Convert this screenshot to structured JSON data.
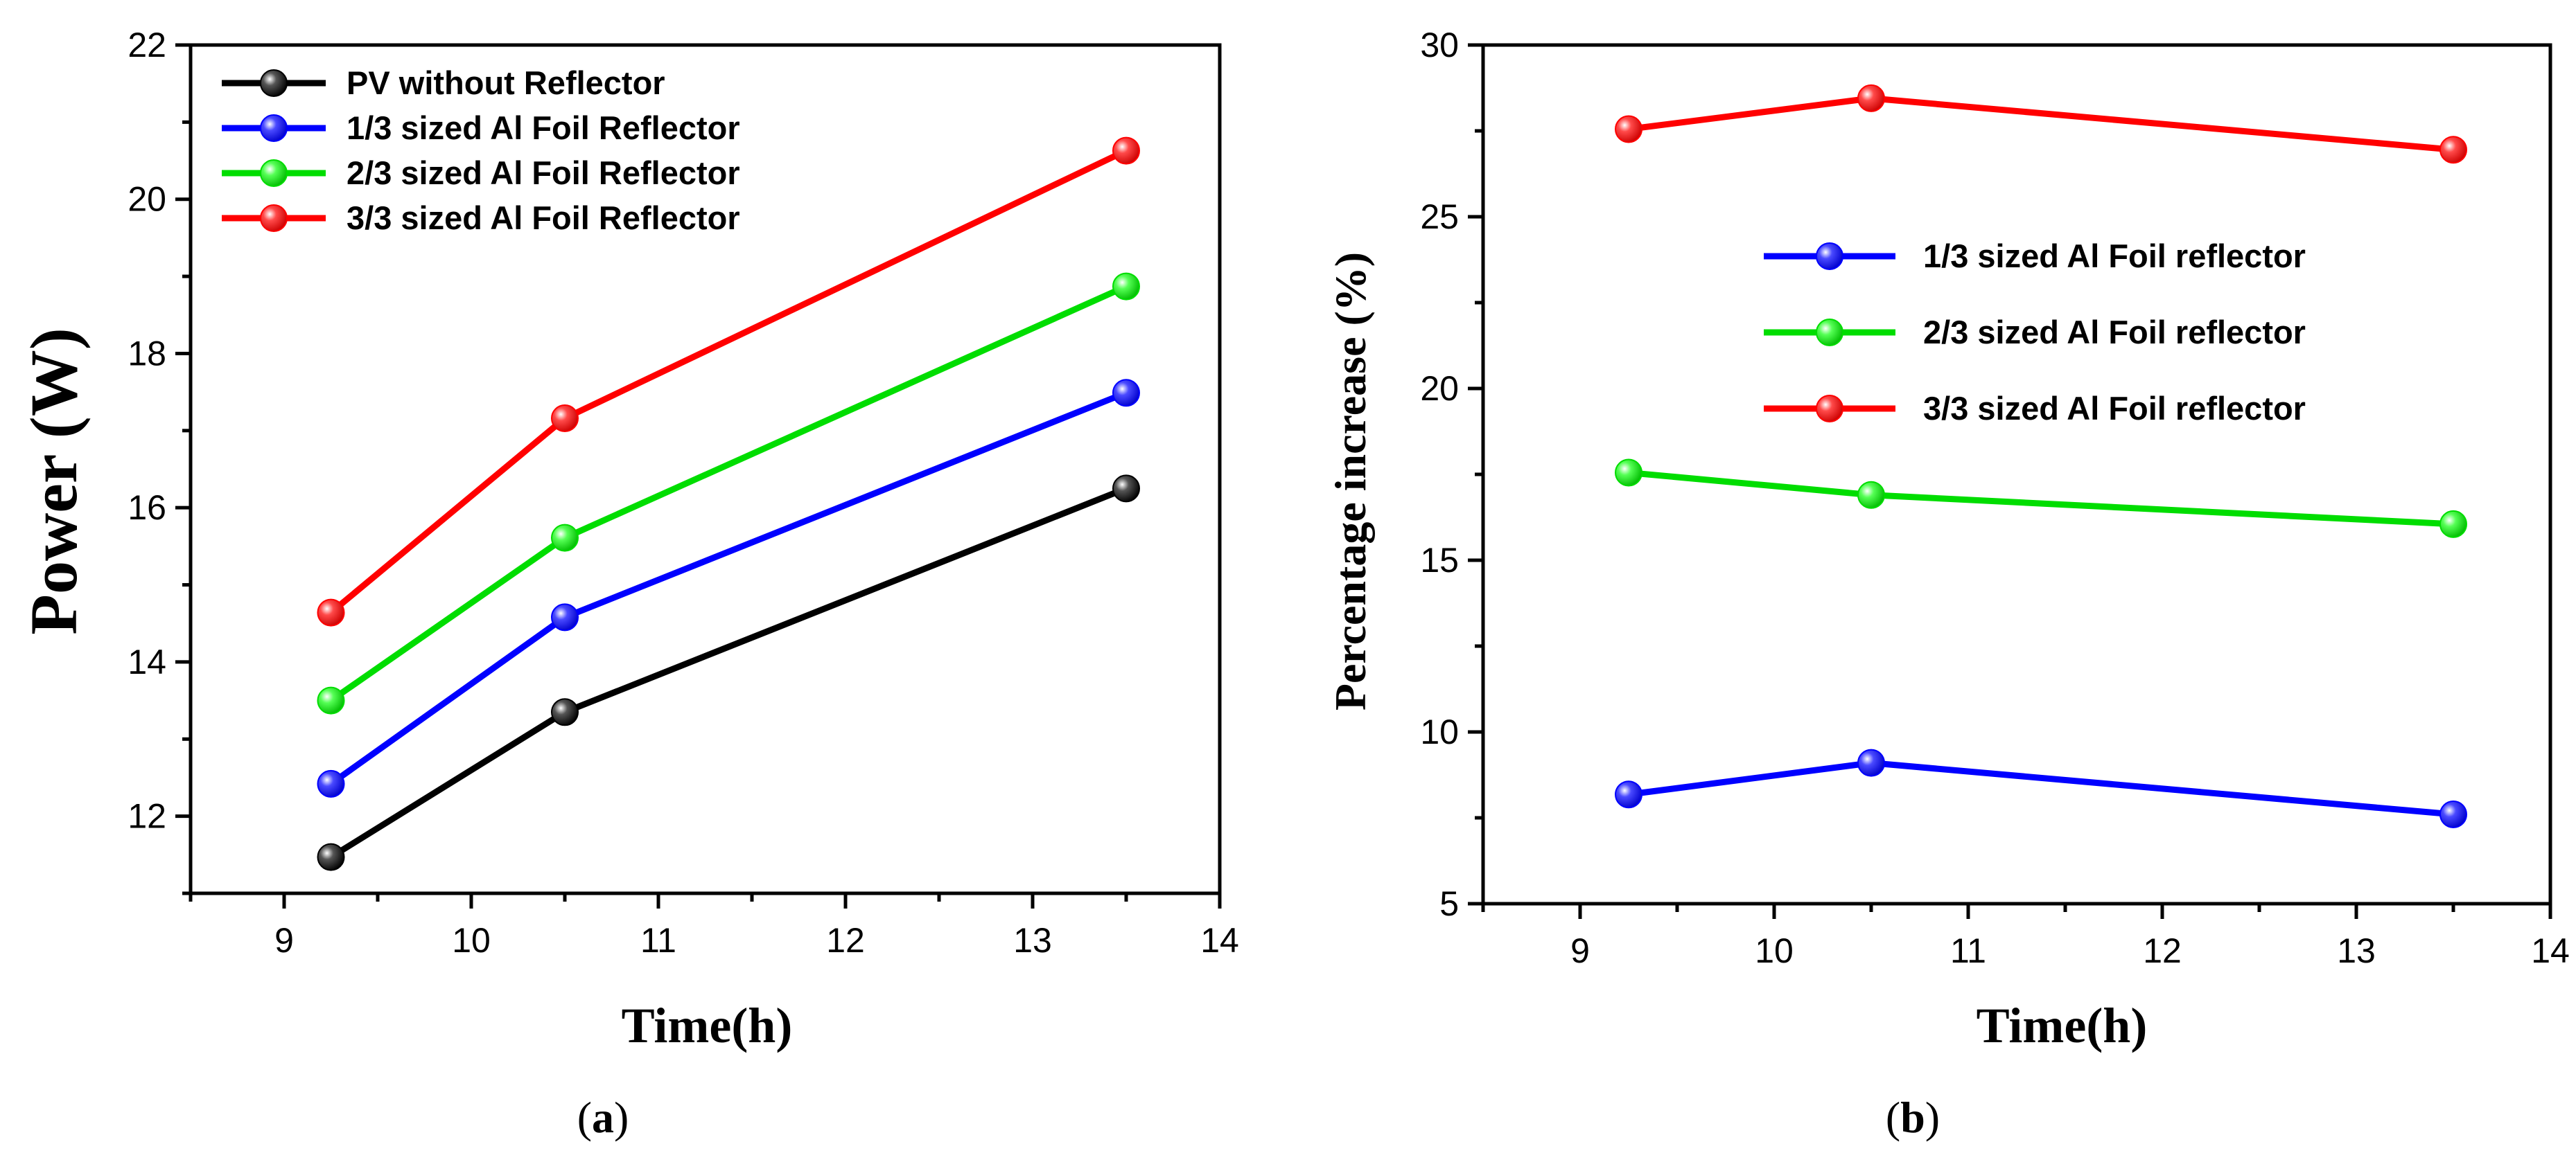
{
  "chart_data": [
    {
      "type": "line",
      "panel_label": "a",
      "title": "",
      "xlabel": "Time(h)",
      "ylabel": "Power (W)",
      "xlim": [
        8.5,
        14
      ],
      "ylim": [
        11,
        22
      ],
      "xticks": [
        9,
        10,
        11,
        12,
        13,
        14
      ],
      "yticks": [
        12,
        14,
        16,
        18,
        20,
        22
      ],
      "legend_position": "top-left",
      "x": [
        9.25,
        10.5,
        13.5
      ],
      "series": [
        {
          "name": "PV without Reflector",
          "color": "#000000",
          "values": [
            11.47,
            13.35,
            16.25
          ]
        },
        {
          "name": "1/3 sized Al Foil Reflector",
          "color": "#0000ff",
          "values": [
            12.42,
            14.58,
            17.49
          ]
        },
        {
          "name": "2/3 sized Al Foil Reflector",
          "color": "#00dd00",
          "values": [
            13.5,
            15.61,
            18.87
          ]
        },
        {
          "name": "3/3 sized Al Foil Reflector",
          "color": "#ff0000",
          "values": [
            14.64,
            17.16,
            20.63
          ]
        }
      ]
    },
    {
      "type": "line",
      "panel_label": "b",
      "title": "",
      "xlabel": "Time(h)",
      "ylabel": "Percentage increase (%)",
      "xlim": [
        8.5,
        14
      ],
      "ylim": [
        5,
        30
      ],
      "xticks": [
        9,
        10,
        11,
        12,
        13,
        14
      ],
      "yticks": [
        5,
        10,
        15,
        20,
        25,
        30
      ],
      "legend_position": "top-right",
      "x": [
        9.25,
        10.5,
        13.5
      ],
      "series": [
        {
          "name": "1/3 sized Al Foil reflector",
          "color": "#0000ff",
          "values": [
            8.18,
            9.1,
            7.6
          ]
        },
        {
          "name": "2/3 sized Al Foil reflector",
          "color": "#00dd00",
          "values": [
            17.55,
            16.9,
            16.05
          ]
        },
        {
          "name": "3/3 sized Al Foil reflector",
          "color": "#ff0000",
          "values": [
            27.55,
            28.45,
            26.95
          ]
        }
      ]
    }
  ]
}
